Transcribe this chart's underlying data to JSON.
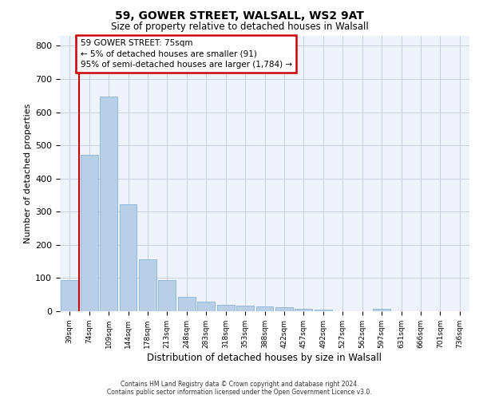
{
  "title_line1": "59, GOWER STREET, WALSALL, WS2 9AT",
  "title_line2": "Size of property relative to detached houses in Walsall",
  "xlabel": "Distribution of detached houses by size in Walsall",
  "ylabel": "Number of detached properties",
  "categories": [
    "39sqm",
    "74sqm",
    "109sqm",
    "144sqm",
    "178sqm",
    "213sqm",
    "248sqm",
    "283sqm",
    "318sqm",
    "353sqm",
    "388sqm",
    "422sqm",
    "457sqm",
    "492sqm",
    "527sqm",
    "562sqm",
    "597sqm",
    "631sqm",
    "666sqm",
    "701sqm",
    "736sqm"
  ],
  "values": [
    95,
    472,
    648,
    323,
    157,
    93,
    43,
    28,
    20,
    18,
    15,
    13,
    8,
    6,
    0,
    0,
    7,
    0,
    0,
    0,
    0
  ],
  "bar_color": "#b8cfe8",
  "bar_edge_color": "#7aaad0",
  "background_color": "#edf2fb",
  "grid_color": "#c5cfe0",
  "annotation_text": "59 GOWER STREET: 75sqm\n← 5% of detached houses are smaller (91)\n95% of semi-detached houses are larger (1,784) →",
  "annotation_box_edgecolor": "#cc0000",
  "red_line_x": 0.5,
  "ylim": [
    0,
    830
  ],
  "yticks": [
    0,
    100,
    200,
    300,
    400,
    500,
    600,
    700,
    800
  ],
  "footer_line1": "Contains HM Land Registry data © Crown copyright and database right 2024.",
  "footer_line2": "Contains public sector information licensed under the Open Government Licence v3.0."
}
